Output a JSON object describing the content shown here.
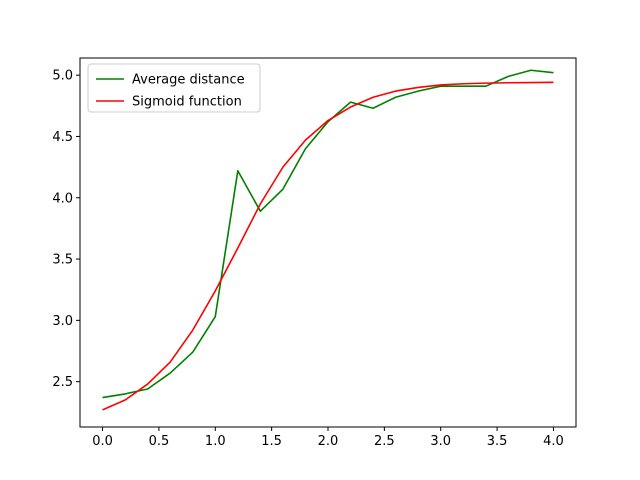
{
  "chart_data": {
    "type": "line",
    "title": "",
    "xlabel": "",
    "ylabel": "",
    "xlim": [
      -0.2,
      4.2
    ],
    "ylim": [
      2.13,
      5.14
    ],
    "x_ticks": [
      0.0,
      0.5,
      1.0,
      1.5,
      2.0,
      2.5,
      3.0,
      3.5,
      4.0
    ],
    "x_tick_labels": [
      "0.0",
      "0.5",
      "1.0",
      "1.5",
      "2.0",
      "2.5",
      "3.0",
      "3.5",
      "4.0"
    ],
    "y_ticks": [
      2.5,
      3.0,
      3.5,
      4.0,
      4.5,
      5.0
    ],
    "y_tick_labels": [
      "2.5",
      "3.0",
      "3.5",
      "4.0",
      "4.5",
      "5.0"
    ],
    "grid": false,
    "legend_position": "top-left",
    "x": [
      0.0,
      0.2,
      0.4,
      0.6,
      0.8,
      1.0,
      1.2,
      1.4,
      1.6,
      1.8,
      2.0,
      2.2,
      2.4,
      2.6,
      2.8,
      3.0,
      3.2,
      3.4,
      3.6,
      3.8,
      4.0
    ],
    "series": [
      {
        "name": "Average distance",
        "color": "#008000",
        "values": [
          2.37,
          2.4,
          2.44,
          2.57,
          2.74,
          3.03,
          4.22,
          3.89,
          4.07,
          4.4,
          4.62,
          4.78,
          4.73,
          4.82,
          4.87,
          4.91,
          4.91,
          4.91,
          4.99,
          5.04,
          5.02
        ]
      },
      {
        "name": "Sigmoid function",
        "color": "#ff0000",
        "values": [
          2.27,
          2.35,
          2.48,
          2.66,
          2.92,
          3.24,
          3.59,
          3.95,
          4.25,
          4.47,
          4.63,
          4.74,
          4.82,
          4.87,
          4.9,
          4.92,
          4.93,
          4.935,
          4.938,
          4.94,
          4.942
        ]
      }
    ]
  }
}
